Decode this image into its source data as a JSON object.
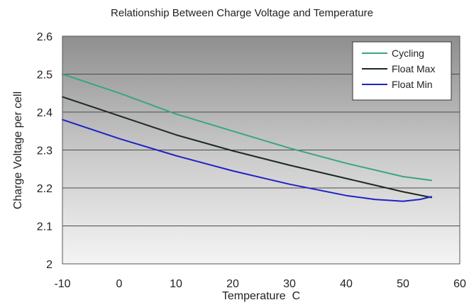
{
  "chart_data": {
    "type": "line",
    "title": "Relationship Between Charge Voltage and Temperature",
    "xlabel": "Temperature  C",
    "ylabel": "Charge Voltage per cell",
    "xlim": [
      -10,
      60
    ],
    "ylim": [
      2,
      2.6
    ],
    "x_ticks": [
      "-10",
      "0",
      "10",
      "20",
      "30",
      "40",
      "50",
      "60"
    ],
    "y_ticks": [
      "2",
      "2.1",
      "2.2",
      "2.3",
      "2.4",
      "2.5",
      "2.6"
    ],
    "grid": "horizontal",
    "legend_position": "top-right",
    "background": "gray-gradient",
    "series": [
      {
        "name": "Cycling",
        "color": "#3aa67a",
        "points": [
          [
            -10,
            2.5
          ],
          [
            0,
            2.45
          ],
          [
            10,
            2.395
          ],
          [
            20,
            2.35
          ],
          [
            30,
            2.305
          ],
          [
            40,
            2.265
          ],
          [
            50,
            2.23
          ],
          [
            55,
            2.22
          ]
        ]
      },
      {
        "name": "Float Max",
        "color": "#1c2a1c",
        "points": [
          [
            -10,
            2.44
          ],
          [
            0,
            2.39
          ],
          [
            10,
            2.34
          ],
          [
            20,
            2.298
          ],
          [
            30,
            2.26
          ],
          [
            40,
            2.225
          ],
          [
            50,
            2.19
          ],
          [
            55,
            2.175
          ]
        ]
      },
      {
        "name": "Float Min",
        "color": "#1f22c8",
        "points": [
          [
            -10,
            2.38
          ],
          [
            0,
            2.33
          ],
          [
            10,
            2.285
          ],
          [
            20,
            2.245
          ],
          [
            30,
            2.21
          ],
          [
            40,
            2.18
          ],
          [
            45,
            2.17
          ],
          [
            50,
            2.165
          ],
          [
            53,
            2.17
          ],
          [
            55,
            2.177
          ]
        ]
      }
    ]
  }
}
